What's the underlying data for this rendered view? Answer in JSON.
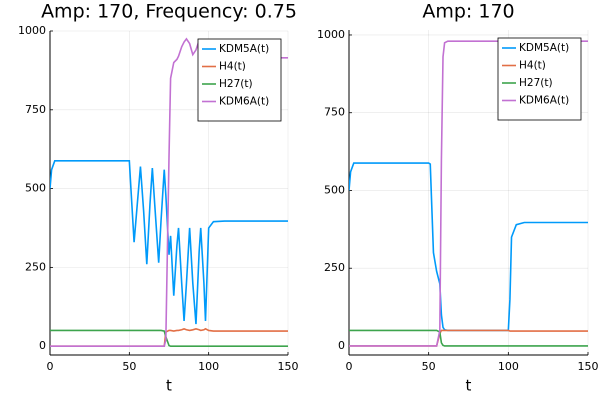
{
  "chart_data": [
    {
      "type": "line",
      "title": "Amp: 170, Frequency: 0.75",
      "x_label": "t",
      "x": [
        0,
        1,
        3,
        10,
        20,
        30,
        40,
        50,
        51,
        53,
        55,
        57,
        59,
        61,
        63,
        64.5,
        66,
        68.5,
        70,
        72,
        73,
        75,
        76,
        78,
        80,
        81,
        83,
        84.5,
        86,
        88,
        90,
        92,
        94,
        95,
        97,
        98,
        100,
        103,
        110,
        120,
        130,
        140,
        150
      ],
      "series": [
        {
          "name": "KDM5A(t)",
          "color": "#009afa",
          "values": [
            500,
            560,
            588,
            588,
            588,
            588,
            588,
            588,
            500,
            330,
            450,
            570,
            430,
            260,
            450,
            565,
            450,
            265,
            400,
            560,
            480,
            290,
            350,
            160,
            320,
            375,
            200,
            80,
            200,
            375,
            200,
            70,
            300,
            375,
            200,
            80,
            375,
            395,
            397,
            397,
            397,
            397,
            397
          ]
        },
        {
          "name": "H4(t)",
          "color": "#e26f46",
          "values": [
            0,
            0,
            0,
            0,
            0,
            0,
            0,
            0,
            0,
            0,
            0,
            0,
            0,
            0,
            0,
            0,
            0,
            0,
            0,
            0,
            45,
            50,
            50,
            48,
            50,
            50,
            52,
            55,
            52,
            50,
            52,
            55,
            52,
            50,
            52,
            55,
            50,
            48,
            48,
            48,
            48,
            48,
            48
          ]
        },
        {
          "name": "H27(t)",
          "color": "#3da44d",
          "values": [
            50,
            50,
            50,
            50,
            50,
            50,
            50,
            50,
            50,
            50,
            50,
            50,
            50,
            50,
            50,
            50,
            50,
            50,
            50,
            48,
            30,
            2,
            0,
            0,
            0,
            0,
            0,
            0,
            0,
            0,
            0,
            0,
            0,
            0,
            0,
            0,
            0,
            0,
            0,
            0,
            0,
            0,
            0
          ]
        },
        {
          "name": "KDM6A(t)",
          "color": "#c271d2",
          "values": [
            0,
            0,
            0,
            0,
            0,
            0,
            0,
            0,
            0,
            0,
            0,
            0,
            0,
            0,
            0,
            0,
            0,
            0,
            0,
            0,
            20,
            600,
            850,
            900,
            910,
            920,
            950,
            965,
            975,
            960,
            925,
            940,
            970,
            970,
            960,
            955,
            915,
            915,
            915,
            915,
            915,
            915,
            915
          ]
        }
      ],
      "xlim": [
        0,
        150
      ],
      "xticks": [
        0,
        50,
        100,
        150
      ],
      "ylim": [
        -28,
        1000
      ],
      "yticks": [
        0,
        250,
        500,
        750,
        1000
      ],
      "grid": true,
      "legend": "topright"
    },
    {
      "type": "line",
      "title": "Amp: 170",
      "x_label": "t",
      "x": [
        0,
        1,
        3,
        10,
        20,
        30,
        40,
        50,
        51,
        53,
        55,
        57,
        58,
        59,
        60,
        62,
        70,
        80,
        90,
        100,
        101,
        102,
        105,
        110,
        120,
        130,
        140,
        150
      ],
      "series": [
        {
          "name": "KDM5A(t)",
          "color": "#009afa",
          "values": [
            500,
            560,
            588,
            588,
            588,
            588,
            588,
            588,
            585,
            300,
            240,
            200,
            100,
            60,
            52,
            50,
            50,
            50,
            50,
            50,
            150,
            350,
            390,
            397,
            397,
            397,
            397,
            397
          ]
        },
        {
          "name": "H4(t)",
          "color": "#e26f46",
          "values": [
            0,
            0,
            0,
            0,
            0,
            0,
            0,
            0,
            0,
            0,
            0,
            40,
            50,
            50,
            50,
            50,
            50,
            50,
            50,
            50,
            48,
            48,
            48,
            48,
            48,
            48,
            48,
            48
          ]
        },
        {
          "name": "H27(t)",
          "color": "#3da44d",
          "values": [
            50,
            50,
            50,
            50,
            50,
            50,
            50,
            50,
            50,
            50,
            50,
            45,
            10,
            2,
            0,
            0,
            0,
            0,
            0,
            0,
            0,
            0,
            0,
            0,
            0,
            0,
            0,
            0
          ]
        },
        {
          "name": "KDM6A(t)",
          "color": "#c271d2",
          "values": [
            0,
            0,
            0,
            0,
            0,
            0,
            0,
            0,
            0,
            0,
            0,
            50,
            600,
            930,
            975,
            980,
            980,
            980,
            980,
            980,
            980,
            980,
            980,
            980,
            980,
            980,
            980,
            980
          ]
        }
      ],
      "xlim": [
        0,
        150
      ],
      "xticks": [
        0,
        50,
        100,
        150
      ],
      "ylim": [
        -29,
        1016
      ],
      "yticks": [
        0,
        250,
        500,
        750,
        1000
      ],
      "grid": true,
      "legend": "topright"
    }
  ]
}
